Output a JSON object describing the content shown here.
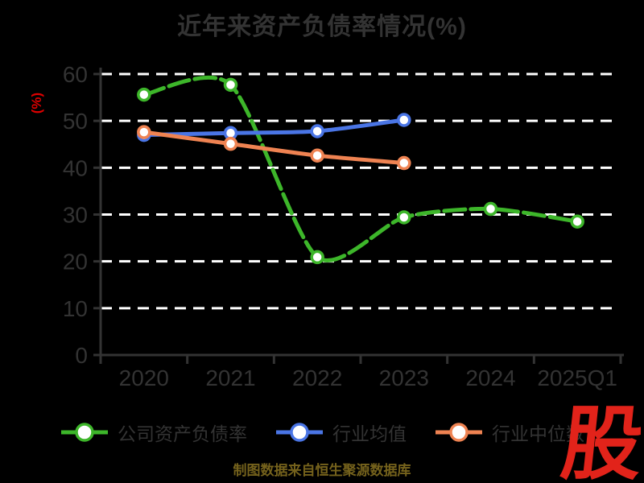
{
  "title": "近年来资产负债率情况(%)",
  "y_axis_label": "(%)",
  "footer_note": "制图数据来自恒生聚源数据库",
  "logo_text": "股",
  "colors": {
    "background": "#000000",
    "title_text": "#333333",
    "axis": "#333333",
    "tick_label": "#333333",
    "gridline": "#ffffff",
    "percent_label": "#dd0000",
    "footer_text": "#75621c",
    "logo_red": "#e2231a",
    "series_company": "#3db62a",
    "series_mean": "#4a75e5",
    "series_median": "#ef8352"
  },
  "legend": {
    "items": [
      {
        "label": "公司资产负债率",
        "color": "#3db62a"
      },
      {
        "label": "行业均值",
        "color": "#4a75e5"
      },
      {
        "label": "行业中位数",
        "color": "#ef8352"
      }
    ]
  },
  "chart_data": {
    "type": "line",
    "title": "近年来资产负债率情况(%)",
    "ylabel": "(%)",
    "xlabel": "",
    "categories": [
      "2020",
      "2021",
      "2022",
      "2023",
      "2024",
      "2025Q1"
    ],
    "series": [
      {
        "name": "公司资产负债率",
        "color": "#3db62a",
        "line_style": "dashed",
        "values": [
          55.6,
          57.7,
          20.9,
          29.4,
          31.2,
          28.5
        ]
      },
      {
        "name": "行业均值",
        "color": "#4a75e5",
        "line_style": "solid",
        "values": [
          47.0,
          47.4,
          47.8,
          50.2,
          null,
          null
        ]
      },
      {
        "name": "行业中位数",
        "color": "#ef8352",
        "line_style": "solid",
        "values": [
          47.6,
          45.1,
          42.6,
          41.0,
          null,
          null
        ]
      }
    ],
    "ylim": [
      0,
      60
    ],
    "ytick_step": 10,
    "yticks": [
      0,
      10,
      20,
      30,
      40,
      50,
      60
    ],
    "grid": "horizontal-dashed-white",
    "legend_position": "bottom",
    "marker": "white-filled-circle"
  }
}
